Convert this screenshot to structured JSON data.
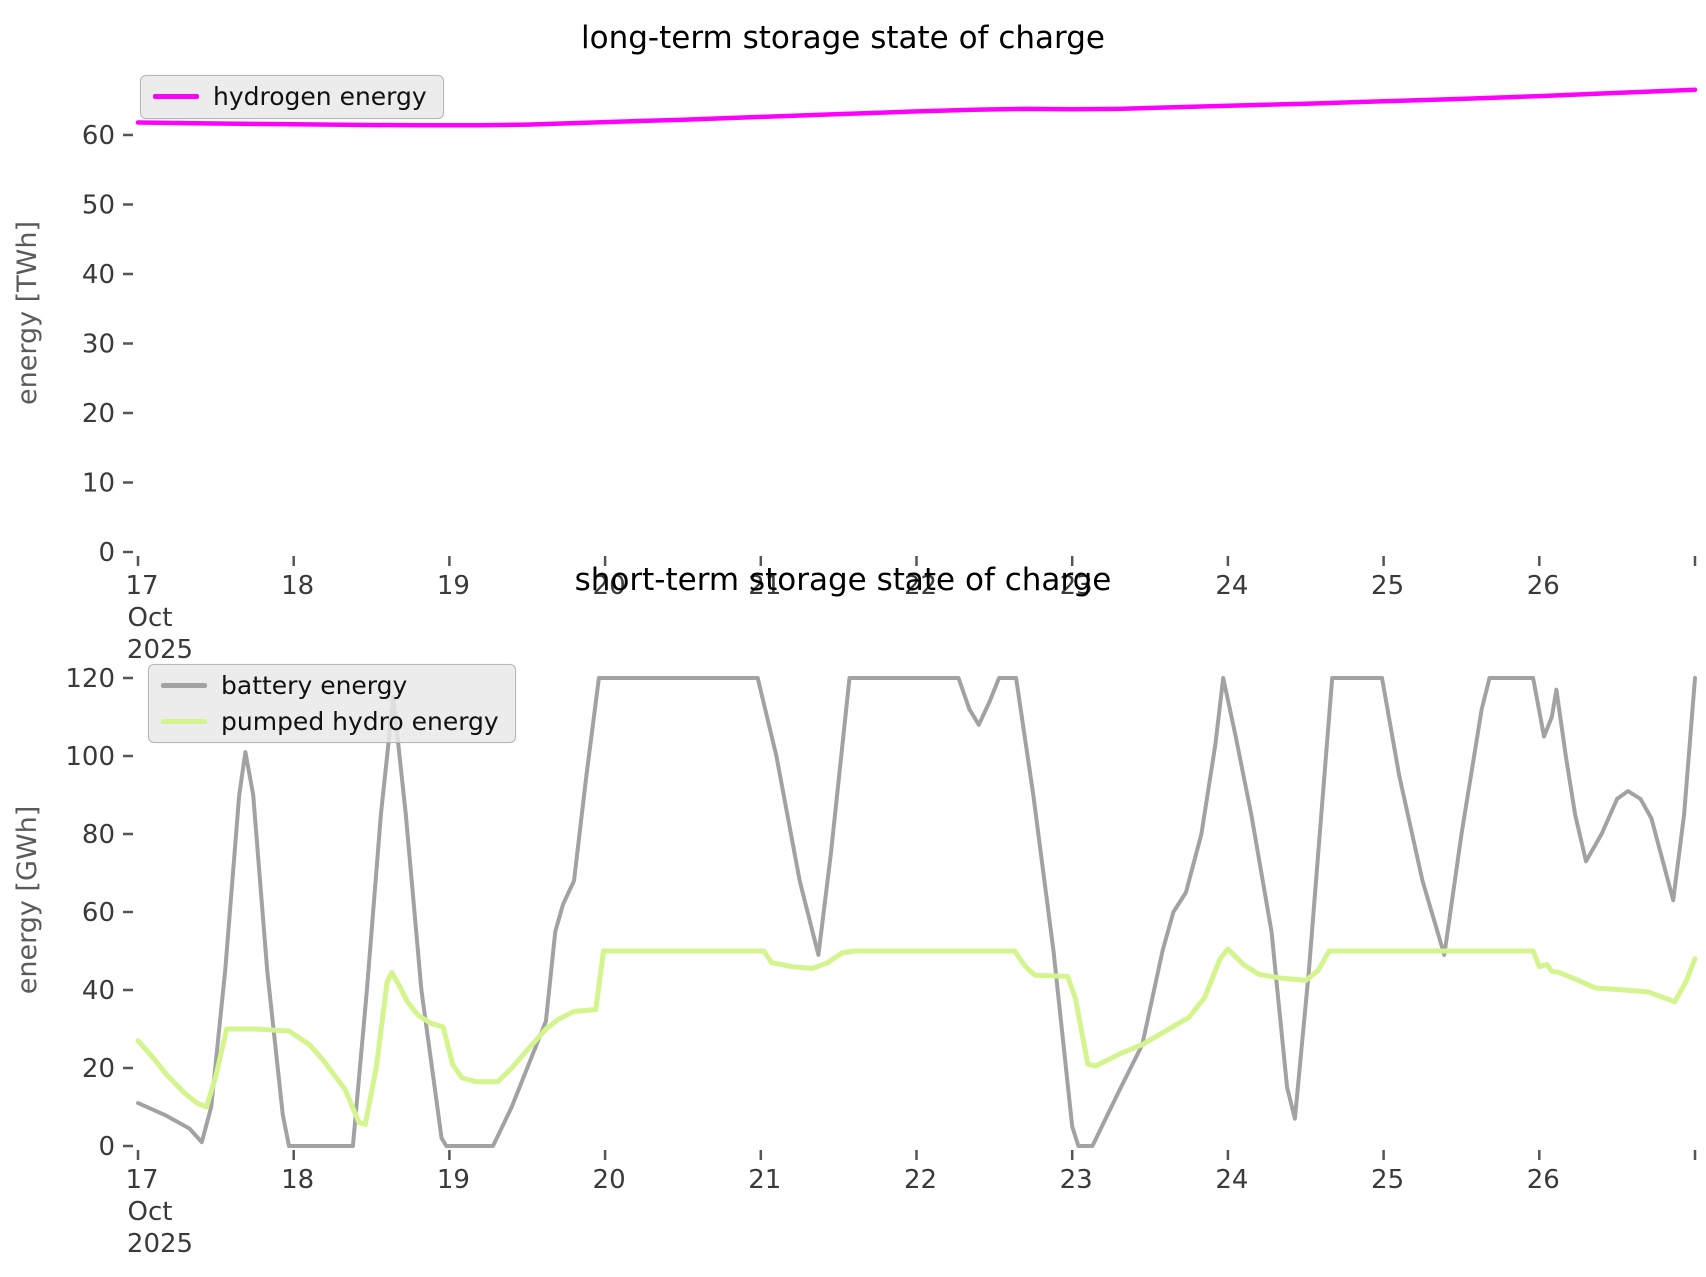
{
  "figure": {
    "background": "#ffffff",
    "tick_color": "#555555",
    "label_color": "#3a3a3a"
  },
  "chart_data": [
    {
      "id": "long-term-storage",
      "type": "line",
      "title": "long-term storage state of charge",
      "ylabel": "energy [TWh]",
      "xlabel": "",
      "x_axis_dates": "17-27 Oct 2025",
      "grid": false,
      "legend_position": "upper left",
      "xlim": [
        17,
        27
      ],
      "ylim": [
        0,
        68.2
      ],
      "y_ticks": [
        0,
        10,
        20,
        30,
        40,
        50,
        60
      ],
      "x_ticks": [
        {
          "v": 17,
          "label": "17",
          "sub": [
            "Oct",
            "2025"
          ]
        },
        {
          "v": 18,
          "label": "18"
        },
        {
          "v": 19,
          "label": "19"
        },
        {
          "v": 20,
          "label": "20"
        },
        {
          "v": 21,
          "label": "21"
        },
        {
          "v": 22,
          "label": "22"
        },
        {
          "v": 23,
          "label": "23"
        },
        {
          "v": 24,
          "label": "24"
        },
        {
          "v": 25,
          "label": "25"
        },
        {
          "v": 26,
          "label": "26"
        },
        {
          "v": 27,
          "label": ""
        }
      ],
      "series": [
        {
          "id": "hydrogen-energy",
          "name": "hydrogen energy",
          "color": "#ff00ff",
          "width": 4.5,
          "points": [
            [
              17.0,
              61.8
            ],
            [
              17.5,
              61.65
            ],
            [
              18.0,
              61.55
            ],
            [
              18.4,
              61.45
            ],
            [
              18.8,
              61.4
            ],
            [
              19.2,
              61.4
            ],
            [
              19.5,
              61.5
            ],
            [
              20.0,
              61.85
            ],
            [
              20.5,
              62.2
            ],
            [
              21.0,
              62.6
            ],
            [
              21.5,
              63.0
            ],
            [
              22.0,
              63.4
            ],
            [
              22.4,
              63.65
            ],
            [
              22.7,
              63.75
            ],
            [
              23.0,
              63.7
            ],
            [
              23.3,
              63.75
            ],
            [
              23.6,
              63.95
            ],
            [
              24.0,
              64.2
            ],
            [
              24.5,
              64.5
            ],
            [
              25.0,
              64.85
            ],
            [
              25.5,
              65.2
            ],
            [
              26.0,
              65.6
            ],
            [
              26.5,
              66.05
            ],
            [
              27.0,
              66.5
            ]
          ]
        }
      ]
    },
    {
      "id": "short-term-storage",
      "type": "line",
      "title": "short-term storage state of charge",
      "ylabel": "energy [GWh]",
      "xlabel": "",
      "x_axis_dates": "17-27 Oct 2025",
      "grid": false,
      "legend_position": "upper left",
      "xlim": [
        17,
        27
      ],
      "ylim": [
        0,
        120
      ],
      "y_ticks": [
        0,
        20,
        40,
        60,
        80,
        100,
        120
      ],
      "x_ticks": [
        {
          "v": 17,
          "label": "17",
          "sub": [
            "Oct",
            "2025"
          ]
        },
        {
          "v": 18,
          "label": "18"
        },
        {
          "v": 19,
          "label": "19"
        },
        {
          "v": 20,
          "label": "20"
        },
        {
          "v": 21,
          "label": "21"
        },
        {
          "v": 22,
          "label": "22"
        },
        {
          "v": 23,
          "label": "23"
        },
        {
          "v": 24,
          "label": "24"
        },
        {
          "v": 25,
          "label": "25"
        },
        {
          "v": 26,
          "label": "26"
        },
        {
          "v": 27,
          "label": ""
        }
      ],
      "series": [
        {
          "id": "battery-energy",
          "name": "battery energy",
          "color": "#a2a2a2",
          "width": 4,
          "points": [
            [
              17.0,
              11
            ],
            [
              17.17,
              8
            ],
            [
              17.33,
              4.5
            ],
            [
              17.41,
              1
            ],
            [
              17.47,
              10
            ],
            [
              17.56,
              45
            ],
            [
              17.65,
              90
            ],
            [
              17.69,
              101
            ],
            [
              17.74,
              90
            ],
            [
              17.83,
              45
            ],
            [
              17.93,
              8
            ],
            [
              17.97,
              0
            ],
            [
              18.38,
              0
            ],
            [
              18.47,
              40
            ],
            [
              18.56,
              85
            ],
            [
              18.64,
              115
            ],
            [
              18.72,
              85
            ],
            [
              18.82,
              40
            ],
            [
              18.95,
              2
            ],
            [
              18.98,
              0
            ],
            [
              19.28,
              0
            ],
            [
              19.4,
              10
            ],
            [
              19.55,
              25
            ],
            [
              19.62,
              32
            ],
            [
              19.68,
              55
            ],
            [
              19.73,
              62
            ],
            [
              19.8,
              68
            ],
            [
              19.88,
              95
            ],
            [
              19.96,
              120
            ],
            [
              20.98,
              120
            ],
            [
              21.1,
              100
            ],
            [
              21.25,
              68
            ],
            [
              21.37,
              49
            ],
            [
              21.45,
              75
            ],
            [
              21.57,
              120
            ],
            [
              22.27,
              120
            ],
            [
              22.34,
              112
            ],
            [
              22.4,
              108
            ],
            [
              22.47,
              114
            ],
            [
              22.53,
              120
            ],
            [
              22.64,
              120
            ],
            [
              22.75,
              90
            ],
            [
              22.88,
              50
            ],
            [
              23.0,
              5
            ],
            [
              23.04,
              0
            ],
            [
              23.13,
              0
            ],
            [
              23.3,
              14
            ],
            [
              23.45,
              26
            ],
            [
              23.58,
              50
            ],
            [
              23.65,
              60
            ],
            [
              23.73,
              65
            ],
            [
              23.83,
              80
            ],
            [
              23.92,
              103
            ],
            [
              23.97,
              120
            ],
            [
              24.05,
              105
            ],
            [
              24.15,
              85
            ],
            [
              24.28,
              55
            ],
            [
              24.38,
              15
            ],
            [
              24.43,
              7
            ],
            [
              24.52,
              45
            ],
            [
              24.6,
              85
            ],
            [
              24.67,
              120
            ],
            [
              24.99,
              120
            ],
            [
              25.1,
              95
            ],
            [
              25.25,
              68
            ],
            [
              25.39,
              49
            ],
            [
              25.5,
              80
            ],
            [
              25.63,
              112
            ],
            [
              25.68,
              120
            ],
            [
              25.96,
              120
            ],
            [
              26.03,
              105
            ],
            [
              26.08,
              110
            ],
            [
              26.11,
              117
            ],
            [
              26.17,
              100
            ],
            [
              26.23,
              85
            ],
            [
              26.3,
              73
            ],
            [
              26.4,
              80
            ],
            [
              26.5,
              89
            ],
            [
              26.57,
              91
            ],
            [
              26.65,
              89
            ],
            [
              26.72,
              84
            ],
            [
              26.8,
              72
            ],
            [
              26.86,
              63
            ],
            [
              26.93,
              85
            ],
            [
              27.0,
              120
            ]
          ]
        },
        {
          "id": "pumped-hydro-energy",
          "name": "pumped hydro energy",
          "color": "#d4f58d",
          "width": 5,
          "points": [
            [
              17.0,
              27
            ],
            [
              17.1,
              22.5
            ],
            [
              17.19,
              18
            ],
            [
              17.3,
              13.5
            ],
            [
              17.38,
              11
            ],
            [
              17.44,
              10
            ],
            [
              17.5,
              18
            ],
            [
              17.57,
              30
            ],
            [
              17.75,
              30
            ],
            [
              17.97,
              29.5
            ],
            [
              18.1,
              26
            ],
            [
              18.19,
              22
            ],
            [
              18.33,
              14.5
            ],
            [
              18.42,
              6
            ],
            [
              18.46,
              5.5
            ],
            [
              18.53,
              20
            ],
            [
              18.6,
              42
            ],
            [
              18.63,
              44.5
            ],
            [
              18.68,
              41
            ],
            [
              18.73,
              37
            ],
            [
              18.8,
              33.5
            ],
            [
              18.88,
              31.5
            ],
            [
              18.96,
              30.5
            ],
            [
              19.02,
              21
            ],
            [
              19.08,
              17.5
            ],
            [
              19.17,
              16.5
            ],
            [
              19.31,
              16.5
            ],
            [
              19.4,
              20
            ],
            [
              19.52,
              25.5
            ],
            [
              19.62,
              30
            ],
            [
              19.7,
              32.5
            ],
            [
              19.8,
              34.5
            ],
            [
              19.94,
              35
            ],
            [
              19.99,
              50
            ],
            [
              21.02,
              50
            ],
            [
              21.07,
              47
            ],
            [
              21.2,
              46
            ],
            [
              21.33,
              45.5
            ],
            [
              21.43,
              47
            ],
            [
              21.52,
              49.5
            ],
            [
              21.6,
              50
            ],
            [
              22.63,
              50
            ],
            [
              22.7,
              46
            ],
            [
              22.76,
              43.8
            ],
            [
              22.97,
              43.5
            ],
            [
              23.02,
              38
            ],
            [
              23.1,
              21
            ],
            [
              23.15,
              20.5
            ],
            [
              23.3,
              23.5
            ],
            [
              23.45,
              26
            ],
            [
              23.6,
              29.5
            ],
            [
              23.75,
              33
            ],
            [
              23.85,
              38
            ],
            [
              23.95,
              48
            ],
            [
              24.0,
              50.5
            ],
            [
              24.1,
              46.5
            ],
            [
              24.2,
              44
            ],
            [
              24.35,
              43
            ],
            [
              24.5,
              42.5
            ],
            [
              24.58,
              45
            ],
            [
              24.65,
              50
            ],
            [
              24.72,
              50
            ],
            [
              25.96,
              50
            ],
            [
              26.0,
              46
            ],
            [
              26.05,
              46.5
            ],
            [
              26.08,
              44.8
            ],
            [
              26.13,
              44.5
            ],
            [
              26.25,
              42.5
            ],
            [
              26.36,
              40.5
            ],
            [
              26.55,
              40
            ],
            [
              26.7,
              39.5
            ],
            [
              26.8,
              38
            ],
            [
              26.87,
              37
            ],
            [
              26.94,
              42
            ],
            [
              27.0,
              48
            ]
          ]
        }
      ]
    }
  ]
}
